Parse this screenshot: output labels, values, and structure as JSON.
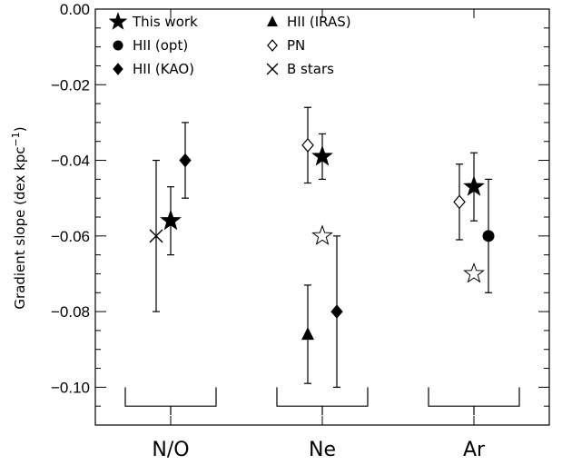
{
  "chart_data": {
    "type": "scatter",
    "ylabel_main": "Gradient slope (dex kpc",
    "ylabel_sup": "−1",
    "ylabel_close": ")",
    "ylim": [
      -0.11,
      0.0
    ],
    "yticks": [
      0.0,
      -0.02,
      -0.04,
      -0.06,
      -0.08,
      -0.1
    ],
    "ytick_labels": [
      "0.00",
      "−0.02",
      "−0.04",
      "−0.06",
      "−0.08",
      "−0.10"
    ],
    "categories": [
      "N/O",
      "Ne",
      "Ar"
    ],
    "legend": [
      {
        "label": "This work",
        "marker": "star-filled"
      },
      {
        "label": "HII (opt)",
        "marker": "circle"
      },
      {
        "label": "HII (KAO)",
        "marker": "diamond-filled"
      },
      {
        "label": "HII (IRAS)",
        "marker": "triangle"
      },
      {
        "label": "PN",
        "marker": "diamond-open"
      },
      {
        "label": "B stars",
        "marker": "cross"
      }
    ],
    "points": [
      {
        "category": "N/O",
        "offset": -0.16,
        "marker": "cross",
        "y": -0.06,
        "err_low": -0.08,
        "err_high": -0.04
      },
      {
        "category": "N/O",
        "offset": 0.0,
        "marker": "star-filled",
        "y": -0.056,
        "err_low": -0.065,
        "err_high": -0.047
      },
      {
        "category": "N/O",
        "offset": 0.16,
        "marker": "diamond-filled",
        "y": -0.04,
        "err_low": -0.05,
        "err_high": -0.03
      },
      {
        "category": "Ne",
        "offset": -0.16,
        "marker": "diamond-open",
        "y": -0.036,
        "err_low": -0.046,
        "err_high": -0.026
      },
      {
        "category": "Ne",
        "offset": 0.0,
        "marker": "star-filled",
        "y": -0.039,
        "err_low": -0.045,
        "err_high": -0.033
      },
      {
        "category": "Ne",
        "offset": 0.0,
        "marker": "star-open",
        "y": -0.06,
        "err_low": null,
        "err_high": null
      },
      {
        "category": "Ne",
        "offset": -0.16,
        "marker": "triangle",
        "y": -0.086,
        "err_low": -0.099,
        "err_high": -0.073
      },
      {
        "category": "Ne",
        "offset": 0.16,
        "marker": "diamond-filled",
        "y": -0.08,
        "err_low": -0.1,
        "err_high": -0.06
      },
      {
        "category": "Ar",
        "offset": -0.16,
        "marker": "diamond-open",
        "y": -0.051,
        "err_low": -0.061,
        "err_high": -0.041
      },
      {
        "category": "Ar",
        "offset": 0.0,
        "marker": "star-filled",
        "y": -0.047,
        "err_low": -0.056,
        "err_high": -0.038
      },
      {
        "category": "Ar",
        "offset": 0.0,
        "marker": "star-open",
        "y": -0.07,
        "err_low": null,
        "err_high": null
      },
      {
        "category": "Ar",
        "offset": 0.16,
        "marker": "circle",
        "y": -0.06,
        "err_low": -0.075,
        "err_high": -0.045
      }
    ],
    "brackets": [
      {
        "category": "N/O",
        "y_top": -0.1,
        "y_bottom": -0.105
      },
      {
        "category": "Ne",
        "y_top": -0.1,
        "y_bottom": -0.105
      },
      {
        "category": "Ar",
        "y_top": -0.1,
        "y_bottom": -0.105
      }
    ]
  }
}
